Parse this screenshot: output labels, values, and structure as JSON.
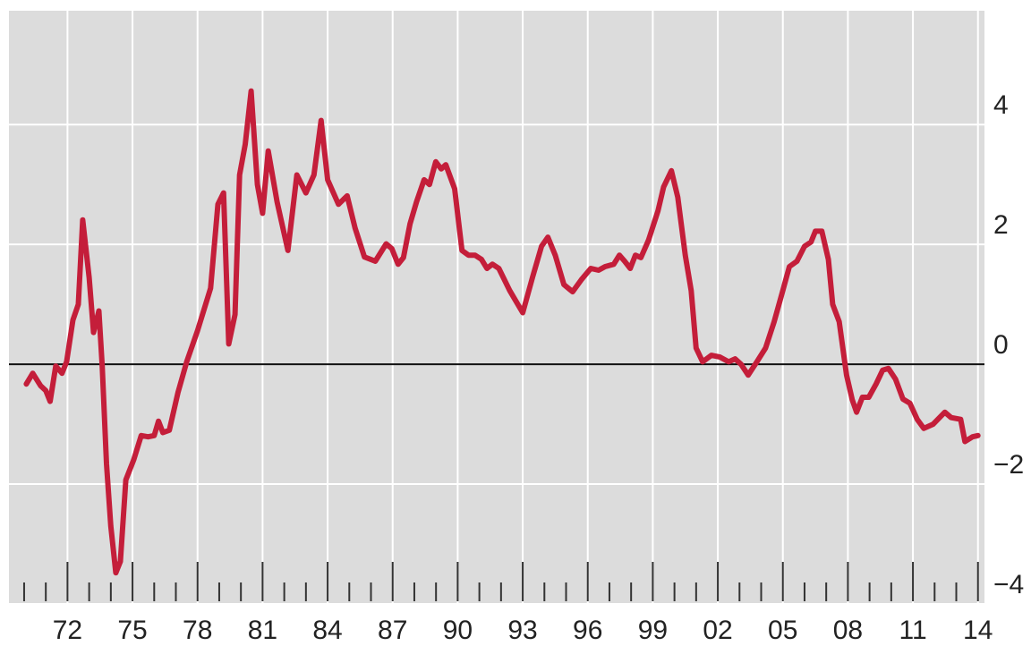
{
  "chart_data": {
    "type": "line",
    "x": [
      1970.1,
      1970.4,
      1970.76,
      1971.0,
      1971.2,
      1971.46,
      1971.75,
      1971.96,
      1972.25,
      1972.5,
      1972.7,
      1973.0,
      1973.2,
      1973.45,
      1973.6,
      1973.8,
      1974.0,
      1974.23,
      1974.44,
      1974.69,
      1975.06,
      1975.4,
      1975.72,
      1976.0,
      1976.2,
      1976.4,
      1976.7,
      1977.1,
      1977.5,
      1978.0,
      1978.6,
      1978.94,
      1979.2,
      1979.44,
      1979.73,
      1979.94,
      1980.2,
      1980.47,
      1980.76,
      1981.0,
      1981.26,
      1981.67,
      1982.17,
      1982.58,
      1983.0,
      1983.37,
      1983.7,
      1984.0,
      1984.5,
      1984.9,
      1985.27,
      1985.7,
      1986.2,
      1986.7,
      1986.96,
      1987.25,
      1987.5,
      1987.8,
      1988.1,
      1988.45,
      1988.7,
      1988.99,
      1989.24,
      1989.45,
      1989.86,
      1990.2,
      1990.5,
      1990.8,
      1991.1,
      1991.35,
      1991.6,
      1991.9,
      1992.4,
      1993.0,
      1993.45,
      1993.87,
      1994.16,
      1994.5,
      1994.9,
      1995.3,
      1995.7,
      1996.14,
      1996.5,
      1996.8,
      1997.2,
      1997.46,
      1997.7,
      1997.96,
      1998.2,
      1998.45,
      1998.8,
      1999.24,
      1999.5,
      1999.86,
      2000.15,
      2000.5,
      2000.77,
      2001.0,
      2001.3,
      2001.7,
      2002.1,
      2002.5,
      2002.8,
      2003.07,
      2003.4,
      2003.8,
      2004.2,
      2004.6,
      2005.0,
      2005.3,
      2005.65,
      2006.0,
      2006.3,
      2006.5,
      2006.8,
      2007.1,
      2007.3,
      2007.6,
      2007.94,
      2008.2,
      2008.4,
      2008.67,
      2008.96,
      2009.3,
      2009.6,
      2009.87,
      2010.2,
      2010.54,
      2010.86,
      2011.2,
      2011.5,
      2011.93,
      2012.47,
      2012.76,
      2013.2,
      2013.4,
      2013.75,
      2014.0
    ],
    "series": [
      {
        "color": "#c41e3a",
        "values": [
          -0.33,
          -0.15,
          -0.36,
          -0.44,
          -0.62,
          -0.03,
          -0.15,
          0.04,
          0.74,
          1.0,
          2.41,
          1.45,
          0.53,
          0.89,
          -0.03,
          -1.66,
          -2.7,
          -3.48,
          -3.29,
          -1.93,
          -1.59,
          -1.19,
          -1.21,
          -1.19,
          -0.95,
          -1.14,
          -1.1,
          -0.47,
          0.04,
          0.56,
          1.27,
          2.67,
          2.86,
          0.34,
          0.83,
          3.16,
          3.67,
          4.56,
          3.0,
          2.52,
          3.56,
          2.71,
          1.9,
          3.16,
          2.86,
          3.16,
          4.07,
          3.08,
          2.67,
          2.81,
          2.27,
          1.79,
          1.72,
          2.01,
          1.93,
          1.67,
          1.78,
          2.34,
          2.71,
          3.08,
          3.0,
          3.38,
          3.26,
          3.33,
          2.93,
          1.9,
          1.82,
          1.82,
          1.75,
          1.6,
          1.67,
          1.6,
          1.23,
          0.86,
          1.45,
          1.97,
          2.12,
          1.82,
          1.33,
          1.21,
          1.41,
          1.6,
          1.57,
          1.63,
          1.67,
          1.82,
          1.72,
          1.6,
          1.82,
          1.78,
          2.07,
          2.56,
          2.96,
          3.23,
          2.79,
          1.82,
          1.23,
          0.27,
          0.04,
          0.15,
          0.12,
          0.04,
          0.09,
          0,
          -0.18,
          0.04,
          0.27,
          0.71,
          1.23,
          1.63,
          1.72,
          1.97,
          2.04,
          2.22,
          2.22,
          1.75,
          1.0,
          0.71,
          -0.18,
          -0.59,
          -0.8,
          -0.55,
          -0.55,
          -0.33,
          -0.1,
          -0.07,
          -0.25,
          -0.58,
          -0.65,
          -0.92,
          -1.07,
          -1.0,
          -0.8,
          -0.89,
          -0.92,
          -1.29,
          -1.21,
          -1.19
        ]
      }
    ],
    "xlim": [
      1969.3,
      2014.3
    ],
    "xticks": [
      {
        "value": 1972,
        "label": "72"
      },
      {
        "value": 1975,
        "label": "75"
      },
      {
        "value": 1978,
        "label": "78"
      },
      {
        "value": 1981,
        "label": "81"
      },
      {
        "value": 1984,
        "label": "84"
      },
      {
        "value": 1987,
        "label": "87"
      },
      {
        "value": 1990,
        "label": "90"
      },
      {
        "value": 1993,
        "label": "93"
      },
      {
        "value": 1996,
        "label": "96"
      },
      {
        "value": 1999,
        "label": "99"
      },
      {
        "value": 2002,
        "label": "02"
      },
      {
        "value": 2005,
        "label": "05"
      },
      {
        "value": 2008,
        "label": "08"
      },
      {
        "value": 2011,
        "label": "11"
      },
      {
        "value": 2014,
        "label": "14"
      }
    ],
    "xticks_minor": [
      1970,
      1971,
      1973,
      1974,
      1976,
      1977,
      1979,
      1980,
      1982,
      1983,
      1985,
      1986,
      1988,
      1989,
      1991,
      1992,
      1994,
      1995,
      1997,
      1998,
      2000,
      2001,
      2003,
      2004,
      2006,
      2007,
      2009,
      2010,
      2012,
      2013
    ],
    "ylim": [
      -4,
      5.9
    ],
    "yticks": [
      4,
      2,
      0,
      {
        "value": -2,
        "label": "−2"
      },
      {
        "value": -4,
        "label": "−4"
      }
    ],
    "grid": true
  }
}
